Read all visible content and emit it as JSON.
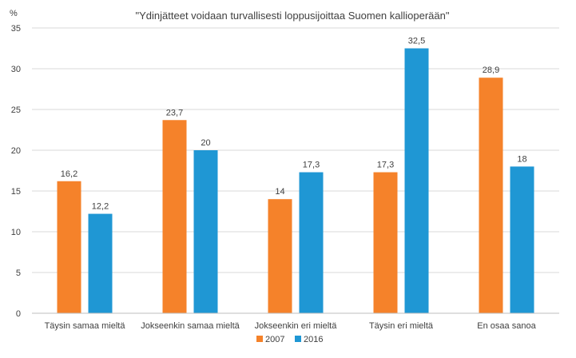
{
  "chart_data": {
    "type": "bar",
    "title": "\"Ydinjätteet voidaan turvallisesti loppusijoittaa Suomen kallioperään\"",
    "xlabel": "",
    "ylabel": "%",
    "ylim": [
      0,
      35
    ],
    "yticks": [
      0,
      5,
      10,
      15,
      20,
      25,
      30,
      35
    ],
    "ytick_labels": [
      "0",
      "5",
      "10",
      "15",
      "20",
      "25",
      "30",
      "35"
    ],
    "grid": true,
    "legend_position": "bottom",
    "categories": [
      "Täysin samaa mieltä",
      "Jokseenkin samaa mieltä",
      "Jokseenkin eri mieltä",
      "Täysin eri mieltä",
      "En osaa sanoa"
    ],
    "series": [
      {
        "name": "2007",
        "color": "#f5822a",
        "values": [
          16.2,
          23.7,
          14,
          17.3,
          28.9
        ],
        "labels": [
          "16,2",
          "23,7",
          "14",
          "17,3",
          "28,9"
        ]
      },
      {
        "name": "2016",
        "color": "#1f97d4",
        "values": [
          12.2,
          20,
          17.3,
          32.5,
          18
        ],
        "labels": [
          "12,2",
          "20",
          "17,3",
          "32,5",
          "18"
        ]
      }
    ]
  }
}
